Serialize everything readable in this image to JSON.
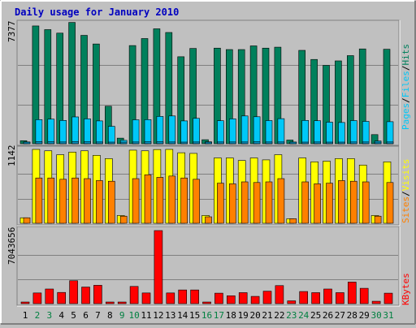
{
  "chart_data": {
    "type": "bar",
    "title": "Daily usage for January 2010",
    "categories": [
      "1",
      "2",
      "3",
      "4",
      "5",
      "6",
      "7",
      "8",
      "9",
      "10",
      "11",
      "12",
      "13",
      "14",
      "15",
      "16",
      "17",
      "18",
      "19",
      "20",
      "21",
      "22",
      "23",
      "24",
      "25",
      "26",
      "27",
      "28",
      "29",
      "30",
      "31"
    ],
    "weekend_days": [
      "2",
      "3",
      "9",
      "10",
      "16",
      "17",
      "23",
      "24",
      "30",
      "31"
    ],
    "panels": {
      "hits_files_pages": {
        "max_label": "7377",
        "ymax": 7377,
        "right_label_parts": [
          "Pages",
          "/",
          "Files",
          "/",
          "Hits"
        ],
        "series": [
          {
            "name": "Hits",
            "color": "#00805C",
            "values": [
              190,
              7380,
              7150,
              6930,
              7600,
              6790,
              6250,
              2350,
              350,
              6150,
              6590,
              7200,
              6970,
              5450,
              5970,
              250,
              5990,
              5900,
              5900,
              6130,
              5990,
              6050,
              230,
              5850,
              5280,
              4910,
              5190,
              5520,
              5940,
              570,
              5920
            ]
          },
          {
            "name": "Files",
            "color": "#00C8F8",
            "values": [
              110,
              1510,
              1540,
              1460,
              1680,
              1560,
              1430,
              1090,
              210,
              1500,
              1510,
              1710,
              1740,
              1430,
              1590,
              120,
              1440,
              1560,
              1740,
              1690,
              1450,
              1570,
              90,
              1460,
              1440,
              1350,
              1330,
              1450,
              1400,
              170,
              1380
            ]
          },
          {
            "name": "Pages",
            "color": "#00C8F8",
            "values": [
              60,
              130,
              120,
              110,
              130,
              120,
              110,
              90,
              60,
              110,
              120,
              120,
              110,
              100,
              110,
              60,
              110,
              110,
              110,
              120,
              110,
              110,
              50,
              100,
              110,
              100,
              100,
              110,
              110,
              60,
              110
            ]
          }
        ]
      },
      "visits_sites": {
        "max_label": "1142",
        "ymax": 1142,
        "right_label_parts": [
          "Sites",
          "/",
          "Visits"
        ],
        "series": [
          {
            "name": "Visits",
            "color": "#FFFF00",
            "values": [
              85,
              1142,
              1120,
              1060,
              1100,
              1120,
              1050,
              1000,
              120,
              1130,
              1120,
              1140,
              1142,
              1090,
              1080,
              120,
              1010,
              1010,
              970,
              1010,
              980,
              1060,
              70,
              1010,
              950,
              960,
              1000,
              1000,
              900,
              120,
              950
            ]
          },
          {
            "name": "Sites",
            "color": "#FF8000",
            "values": [
              85,
              700,
              700,
              680,
              700,
              690,
              660,
              650,
              110,
              690,
              750,
              710,
              730,
              700,
              680,
              100,
              620,
              610,
              640,
              630,
              640,
              690,
              70,
              640,
              610,
              620,
              660,
              650,
              640,
              110,
              630
            ]
          }
        ]
      },
      "kbytes": {
        "max_label": "7043656",
        "ymax": 7043656,
        "right_label_parts": [
          "KBytes"
        ],
        "series": [
          {
            "name": "KBytes",
            "color": "#FF0000",
            "values": [
              60000,
              1030000,
              1410000,
              1080000,
              2210000,
              1600000,
              1770000,
              60000,
              60000,
              1660000,
              1030000,
              7043656,
              1030000,
              1320000,
              1320000,
              60000,
              1010000,
              760000,
              1060000,
              700000,
              1200000,
              1740000,
              270000,
              1170000,
              1060000,
              1410000,
              1060000,
              2080000,
              1480000,
              230000,
              1010000
            ]
          }
        ]
      }
    }
  },
  "colors": {
    "background": "#C0C0C0",
    "plot_bg": "#C0C0C0",
    "title": "#0000C0",
    "text": "#000000",
    "weekend_label": "#008040",
    "hits": "#00805C",
    "files": "#00C8F8",
    "visits": "#FFFF00",
    "sites": "#FF8000",
    "kbytes": "#FF0000",
    "gridline": "#808080",
    "bevel_light": "#FFFFFF",
    "bevel_dark": "#808080"
  }
}
